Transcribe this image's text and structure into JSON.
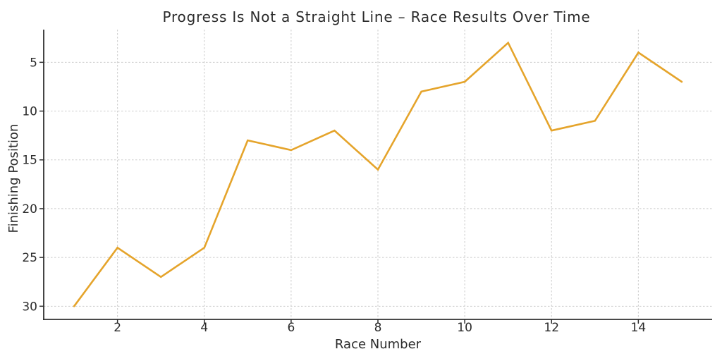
{
  "chart_data": {
    "type": "line",
    "title": "Progress Is Not a Straight Line – Race Results Over Time",
    "xlabel": "Race Number",
    "ylabel": "Finishing Position",
    "x": [
      1,
      2,
      3,
      4,
      5,
      6,
      7,
      8,
      9,
      10,
      11,
      12,
      13,
      14,
      15
    ],
    "series": [
      {
        "name": "Finishing Position",
        "values": [
          30,
          24,
          27,
          24,
          13,
          14,
          12,
          16,
          8,
          7,
          3,
          12,
          11,
          4,
          7
        ]
      }
    ],
    "x_ticks": [
      2,
      4,
      6,
      8,
      10,
      12,
      14
    ],
    "y_ticks": [
      5,
      10,
      15,
      20,
      25,
      30
    ],
    "xlim": [
      0.3,
      15.7
    ],
    "ylim": [
      1.65,
      31.35
    ],
    "y_axis_inverted": true,
    "grid": true,
    "grid_style": "dashed",
    "legend": "none",
    "line_color": "#E5A42B",
    "grid_color": "#cbcbcb",
    "axis_color": "#2f2f2f",
    "text_color": "#2b2b2b"
  }
}
